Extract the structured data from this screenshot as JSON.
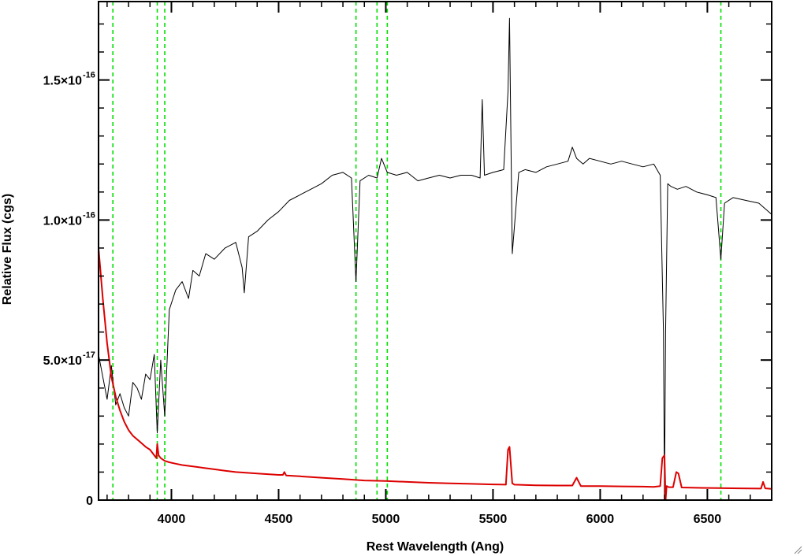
{
  "chart_data": {
    "type": "line",
    "title": "",
    "xlabel": "Rest Wavelength (Ang)",
    "ylabel": "Relative Flux (cgs)",
    "xlim": [
      3660,
      6800
    ],
    "ylim": [
      0,
      1.78e-16
    ],
    "x_ticks": [
      {
        "value": 4000,
        "label": "4000"
      },
      {
        "value": 4500,
        "label": "4500"
      },
      {
        "value": 5000,
        "label": "5000"
      },
      {
        "value": 5500,
        "label": "5500"
      },
      {
        "value": 6000,
        "label": "6000"
      },
      {
        "value": 6500,
        "label": "6500"
      }
    ],
    "y_ticks": [
      {
        "value": 0,
        "mantissa": "0",
        "exponent": ""
      },
      {
        "value": 5e-17,
        "mantissa": "5.0×10",
        "exponent": "-17"
      },
      {
        "value": 1e-16,
        "mantissa": "1.0×10",
        "exponent": "-16"
      },
      {
        "value": 1.5e-16,
        "mantissa": "1.5×10",
        "exponent": "-16"
      }
    ],
    "reference_lines": {
      "color": "#00e000",
      "style": "dashed",
      "x": [
        3727,
        3934,
        3969,
        4861,
        4959,
        5007,
        6563
      ]
    },
    "series": [
      {
        "color": "#000000",
        "x": [
          3660,
          3680,
          3700,
          3720,
          3740,
          3760,
          3780,
          3800,
          3820,
          3840,
          3860,
          3880,
          3900,
          3920,
          3934,
          3950,
          3969,
          3990,
          4020,
          4050,
          4080,
          4100,
          4130,
          4160,
          4200,
          4250,
          4300,
          4330,
          4340,
          4360,
          4400,
          4450,
          4500,
          4550,
          4600,
          4650,
          4700,
          4750,
          4800,
          4840,
          4861,
          4880,
          4920,
          4959,
          4980,
          5007,
          5050,
          5100,
          5150,
          5200,
          5250,
          5300,
          5350,
          5400,
          5440,
          5450,
          5460,
          5500,
          5550,
          5570,
          5577,
          5590,
          5620,
          5650,
          5700,
          5750,
          5800,
          5850,
          5870,
          5890,
          5920,
          5950,
          6000,
          6050,
          6100,
          6150,
          6200,
          6250,
          6280,
          6295,
          6300,
          6305,
          6315,
          6330,
          6360,
          6400,
          6450,
          6500,
          6540,
          6563,
          6580,
          6620,
          6680,
          6740,
          6800
        ],
        "y": [
          5.2e-17,
          4.4e-17,
          3.6e-17,
          4.8e-17,
          3.4e-17,
          3.8e-17,
          3.3e-17,
          3e-17,
          4.2e-17,
          4e-17,
          3.6e-17,
          4.5e-17,
          4.3e-17,
          5.2e-17,
          2.4e-17,
          5e-17,
          3e-17,
          6.8e-17,
          7.5e-17,
          7.8e-17,
          7.2e-17,
          8.2e-17,
          8e-17,
          8.8e-17,
          8.6e-17,
          9e-17,
          9.2e-17,
          8.3e-17,
          7.4e-17,
          9.4e-17,
          9.6e-17,
          1e-16,
          1.03e-16,
          1.07e-16,
          1.09e-16,
          1.11e-16,
          1.13e-16,
          1.16e-16,
          1.17e-16,
          1.15e-16,
          7.8e-17,
          1.14e-16,
          1.16e-16,
          1.15e-16,
          1.22e-16,
          1.17e-16,
          1.16e-16,
          1.17e-16,
          1.14e-16,
          1.15e-16,
          1.16e-16,
          1.15e-16,
          1.16e-16,
          1.16e-16,
          1.15e-16,
          1.43e-16,
          1.16e-16,
          1.17e-16,
          1.18e-16,
          1.46e-16,
          1.72e-16,
          8.8e-17,
          1.17e-16,
          1.18e-16,
          1.17e-16,
          1.19e-16,
          1.2e-16,
          1.21e-16,
          1.26e-16,
          1.22e-16,
          1.2e-16,
          1.22e-16,
          1.21e-16,
          1.2e-16,
          1.21e-16,
          1.2e-16,
          1.19e-16,
          1.2e-16,
          1.16e-16,
          6e-17,
          2e-18,
          6e-17,
          1.13e-16,
          1.12e-16,
          1.11e-16,
          1.12e-16,
          1.1e-16,
          1.09e-16,
          1.08e-16,
          8.6e-17,
          1.06e-16,
          1.08e-16,
          1.07e-16,
          1.06e-16,
          1.02e-16
        ]
      },
      {
        "color": "#dd0000",
        "x": [
          3660,
          3680,
          3700,
          3720,
          3740,
          3760,
          3780,
          3800,
          3820,
          3850,
          3880,
          3900,
          3920,
          3930,
          3934,
          3940,
          3950,
          3969,
          3990,
          4020,
          4050,
          4100,
          4150,
          4200,
          4250,
          4300,
          4400,
          4500,
          4520,
          4527,
          4535,
          4600,
          4700,
          4800,
          4900,
          5000,
          5100,
          5200,
          5300,
          5400,
          5500,
          5560,
          5570,
          5577,
          5590,
          5600,
          5700,
          5800,
          5870,
          5890,
          5910,
          6000,
          6100,
          6200,
          6250,
          6280,
          6290,
          6300,
          6305,
          6310,
          6320,
          6340,
          6355,
          6365,
          6380,
          6450,
          6550,
          6650,
          6750,
          6760,
          6770,
          6800
        ],
        "y": [
          9e-17,
          7.2e-17,
          5.6e-17,
          4.4e-17,
          3.7e-17,
          3.2e-17,
          2.8e-17,
          2.5e-17,
          2.3e-17,
          2.1e-17,
          1.9e-17,
          1.8e-17,
          1.6e-17,
          1.5e-17,
          2e-17,
          1.6e-17,
          1.5e-17,
          1.4e-17,
          1.35e-17,
          1.3e-17,
          1.25e-17,
          1.2e-17,
          1.15e-17,
          1.1e-17,
          1.05e-17,
          1e-17,
          9.5e-18,
          9e-18,
          9e-18,
          1e-17,
          8.8e-18,
          8.5e-18,
          8e-18,
          7.5e-18,
          7e-18,
          6.8e-18,
          6.5e-18,
          6.2e-18,
          6e-18,
          5.8e-18,
          5.6e-18,
          5.5e-18,
          1.8e-17,
          1.9e-17,
          6e-18,
          5.5e-18,
          5.3e-18,
          5.2e-18,
          5.2e-18,
          8e-18,
          5e-18,
          5e-18,
          4.9e-18,
          4.8e-18,
          4.7e-18,
          5e-18,
          1.5e-17,
          1.6e-17,
          0.0,
          5e-18,
          4.6e-18,
          4.6e-18,
          1e-17,
          9.5e-18,
          4.5e-18,
          4.4e-18,
          4.3e-18,
          4.2e-18,
          4.1e-18,
          6.5e-18,
          4.2e-18,
          4e-18
        ]
      }
    ]
  }
}
